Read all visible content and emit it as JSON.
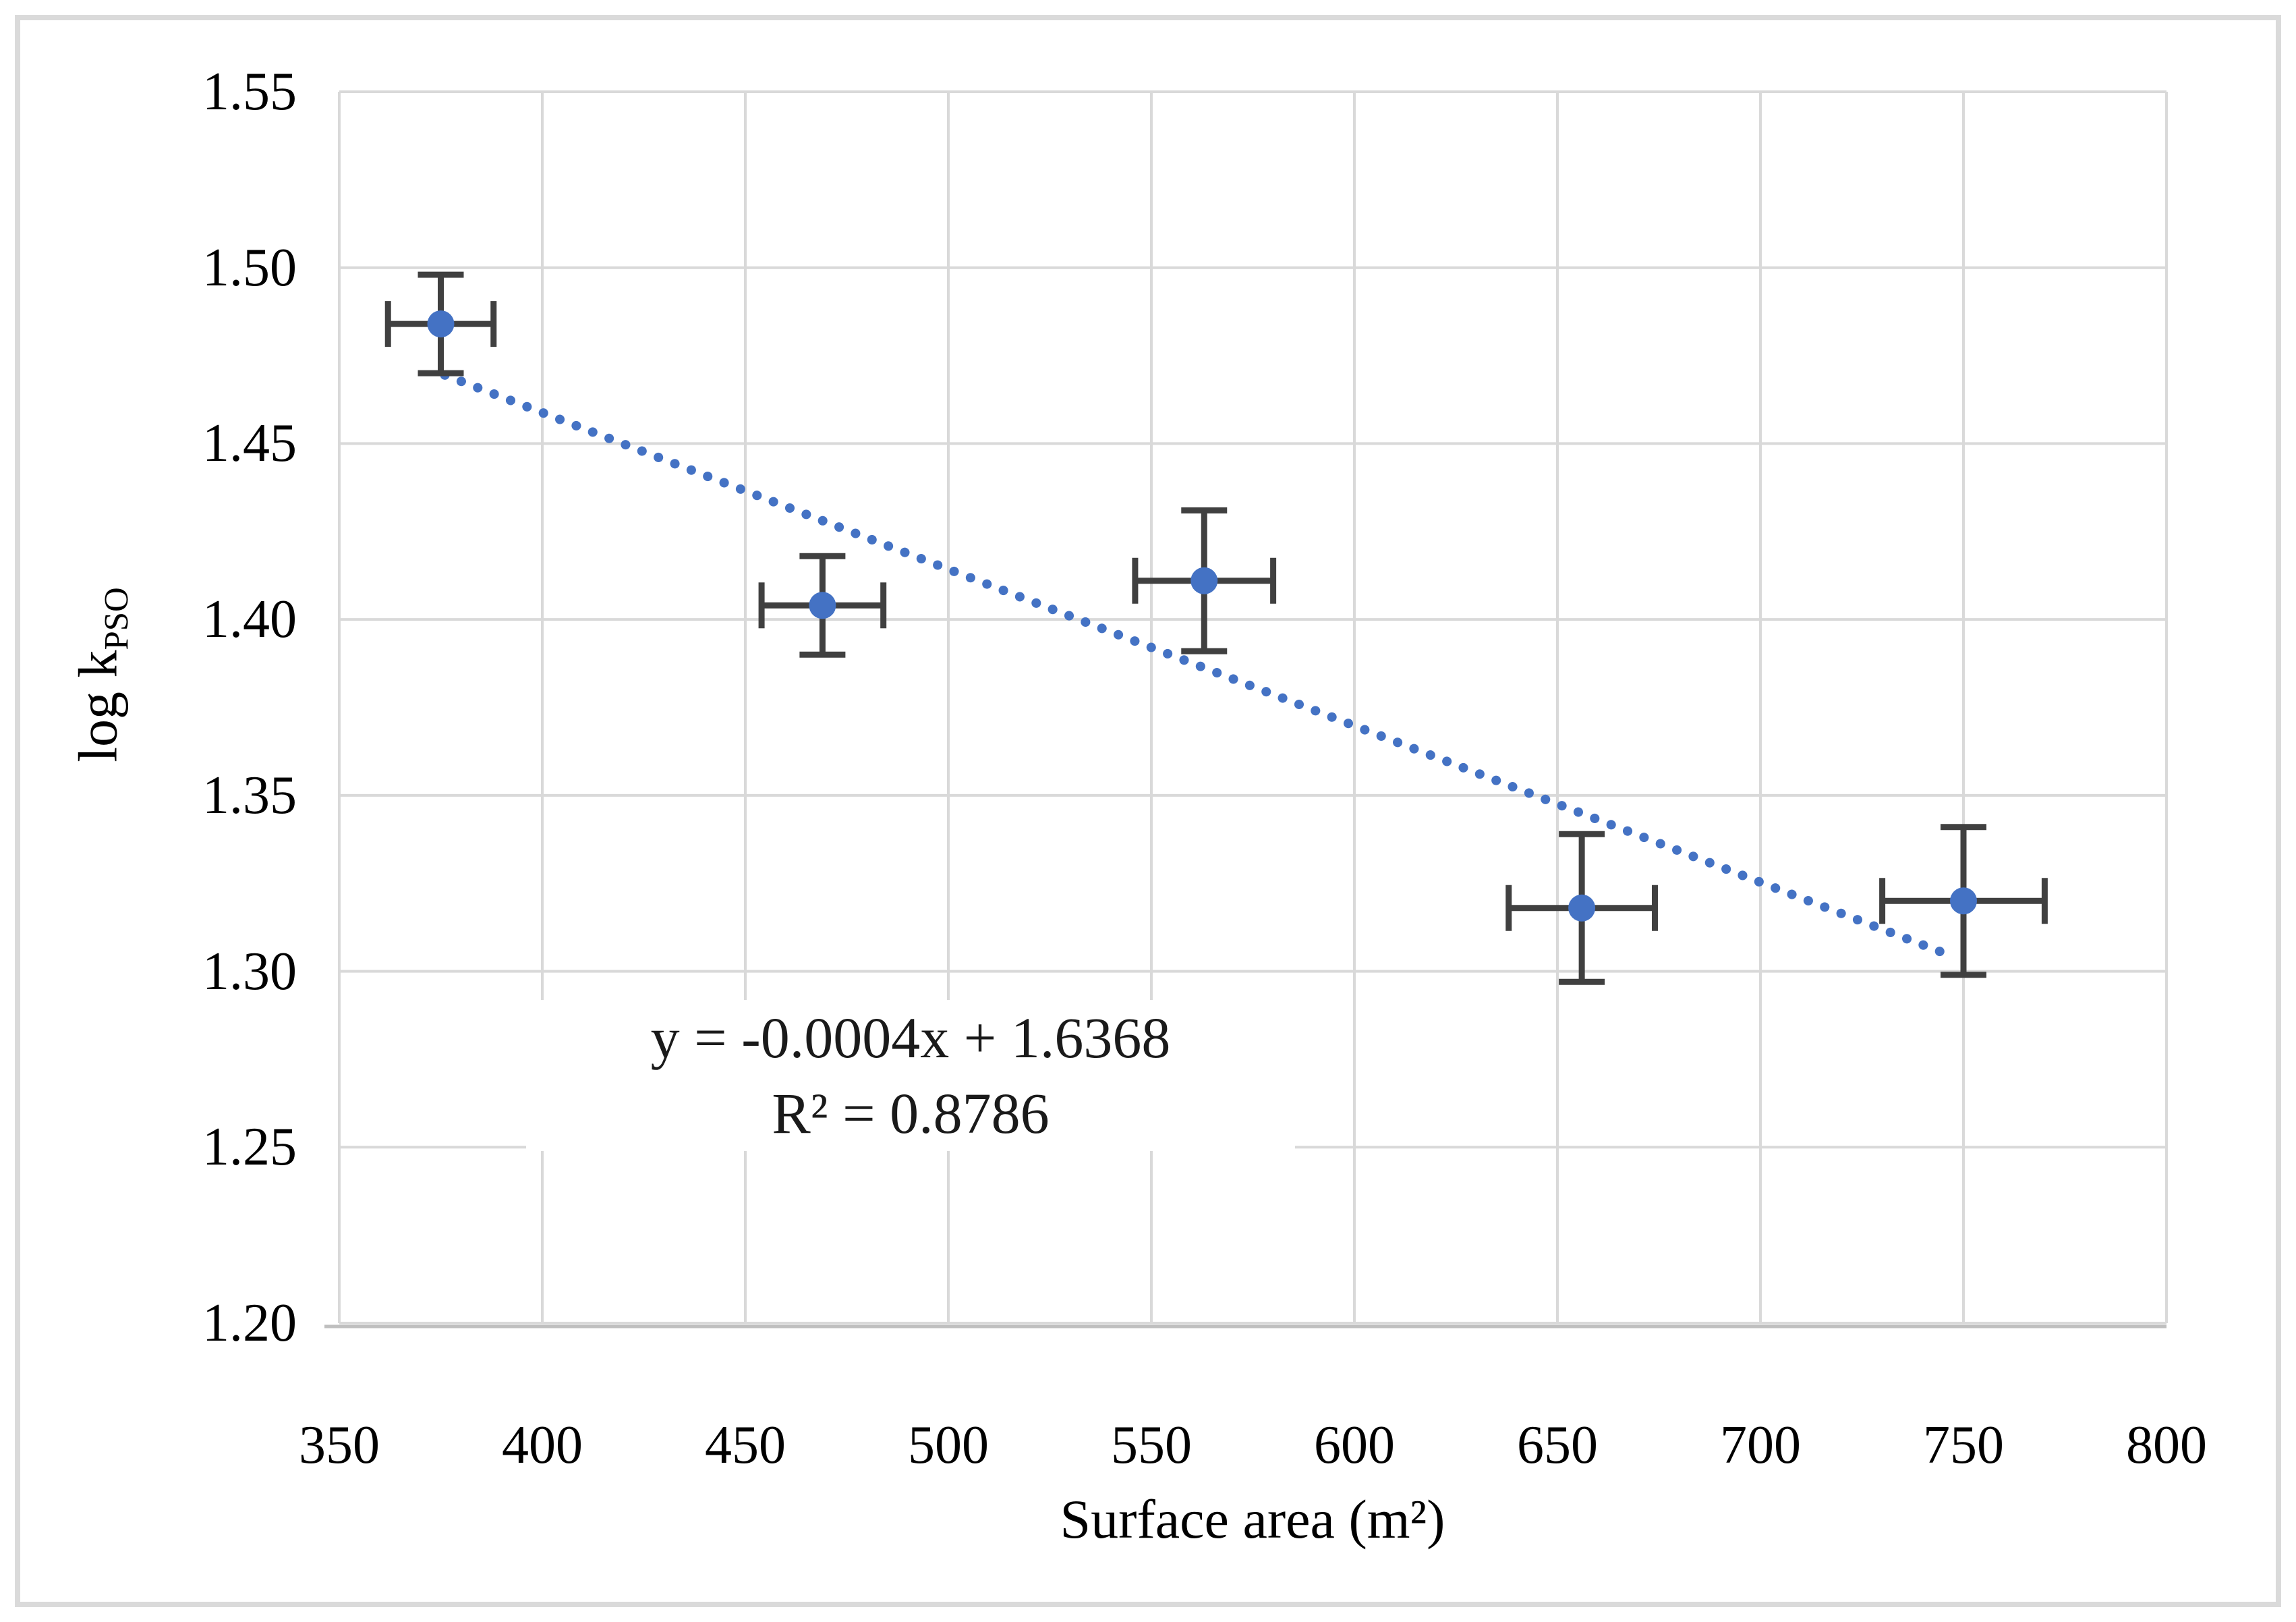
{
  "chart_data": {
    "type": "scatter",
    "title": "",
    "xlabel": "Surface area (m²)",
    "ylabel": {
      "main": "log k",
      "sub": "PSO"
    },
    "xlim": [
      350,
      800
    ],
    "ylim": [
      1.2,
      1.55
    ],
    "x_ticks": [
      350,
      400,
      450,
      500,
      550,
      600,
      650,
      700,
      750,
      800
    ],
    "x_tick_labels": [
      "350",
      "400",
      "450",
      "500",
      "550",
      "600",
      "650",
      "700",
      "750",
      "800"
    ],
    "y_ticks": [
      1.2,
      1.25,
      1.3,
      1.35,
      1.4,
      1.45,
      1.5,
      1.55
    ],
    "y_tick_labels": [
      "1.20",
      "1.25",
      "1.30",
      "1.35",
      "1.40",
      "1.45",
      "1.50",
      "1.55"
    ],
    "grid": true,
    "legend_position": "none",
    "series": [
      {
        "marker": "circle",
        "points": [
          {
            "x": 375,
            "y": 1.484,
            "xerr": 13,
            "yerr": 0.014
          },
          {
            "x": 469,
            "y": 1.404,
            "xerr": 15,
            "yerr": 0.014
          },
          {
            "x": 563,
            "y": 1.411,
            "xerr": 17,
            "yerr": 0.02
          },
          {
            "x": 656,
            "y": 1.318,
            "xerr": 18,
            "yerr": 0.021
          },
          {
            "x": 750,
            "y": 1.32,
            "xerr": 20,
            "yerr": 0.021
          }
        ]
      }
    ],
    "trendline": {
      "style": "dotted",
      "slope": -0.000445,
      "intercept": 1.6368,
      "x_start": 376,
      "x_end": 747,
      "equation_label": "y = -0.0004x + 1.6368",
      "r_squared_label": "R² = 0.8786"
    },
    "colors": {
      "marker": "#4472C4",
      "trendline": "#4472C4",
      "error_bar": "#404040",
      "gridline": "#D9D9D9",
      "axis_line": "#BFBFBF",
      "text": "#000000",
      "frame_border": "#DADADA",
      "background": "#FFFFFF"
    }
  }
}
